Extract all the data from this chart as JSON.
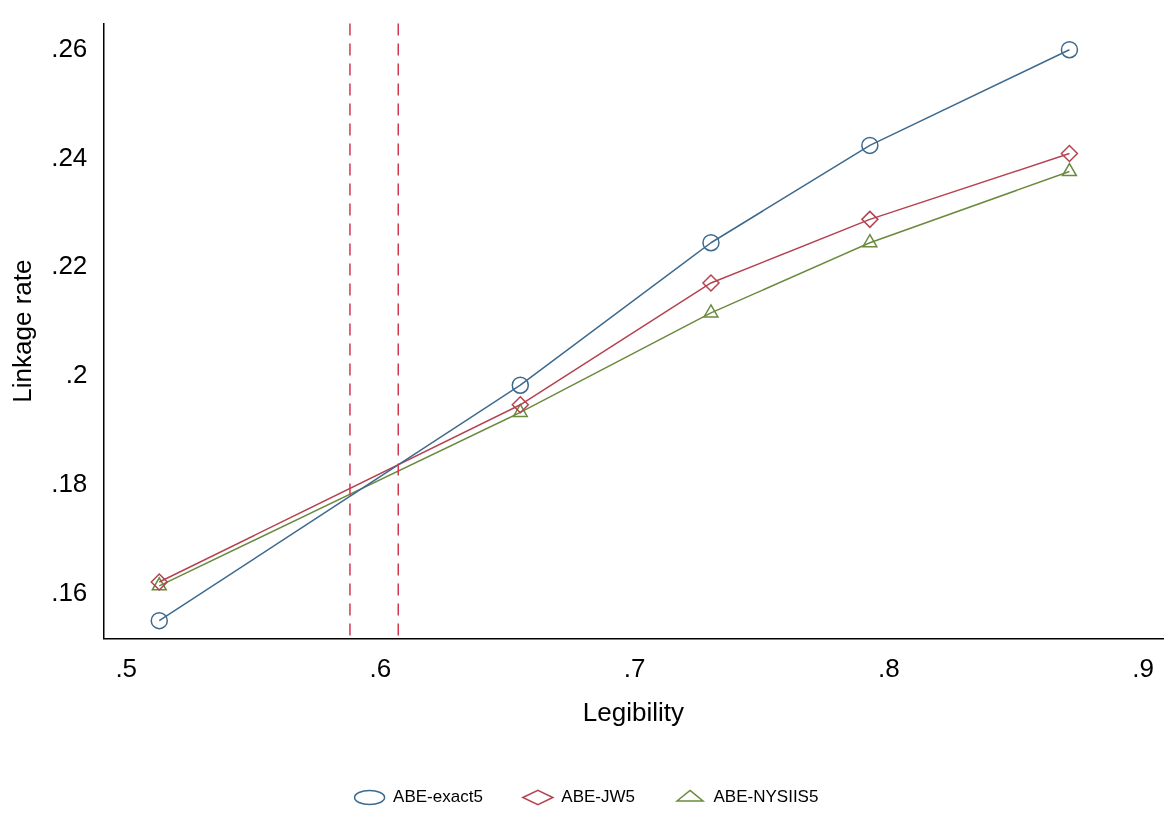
{
  "chart_data": {
    "type": "line",
    "xlabel": "Legibility",
    "ylabel": "Linkage rate",
    "xlim": [
      0.491,
      0.908
    ],
    "xticks": [
      {
        "value": 0.5,
        "label": ".5"
      },
      {
        "value": 0.6,
        "label": ".6"
      },
      {
        "value": 0.7,
        "label": ".7"
      },
      {
        "value": 0.8,
        "label": ".8"
      },
      {
        "value": 0.9,
        "label": ".9"
      }
    ],
    "ylim": [
      0.1517,
      0.2648
    ],
    "yticks": [
      {
        "value": 0.16,
        "label": ".16"
      },
      {
        "value": 0.18,
        "label": ".18"
      },
      {
        "value": 0.2,
        "label": ".2"
      },
      {
        "value": 0.22,
        "label": ".22"
      },
      {
        "value": 0.24,
        "label": ".24"
      },
      {
        "value": 0.26,
        "label": ".26"
      }
    ],
    "x": [
      0.513,
      0.655,
      0.73,
      0.7925,
      0.871
    ],
    "series": [
      {
        "name": "ABE-exact5",
        "color": "#3e6a8e",
        "marker": "circle",
        "values": [
          0.155,
          0.1983,
          0.2245,
          0.2424,
          0.26
        ]
      },
      {
        "name": "ABE-JW5",
        "color": "#b5424f",
        "marker": "diamond",
        "values": [
          0.1621,
          0.1947,
          0.2171,
          0.2288,
          0.2409
        ]
      },
      {
        "name": "ABE-NYSIIS5",
        "color": "#6a8a3e",
        "marker": "triangle",
        "values": [
          0.1614,
          0.1933,
          0.2116,
          0.2245,
          0.2376
        ]
      }
    ],
    "ref_lines": [
      {
        "axis": "x",
        "value": 0.588,
        "color": "#d0394f",
        "line_style": "dashed"
      },
      {
        "axis": "x",
        "value": 0.607,
        "color": "#d0394f",
        "line_style": "dashed"
      }
    ],
    "grid": false,
    "legend": "bottom",
    "line_style": "solid"
  }
}
